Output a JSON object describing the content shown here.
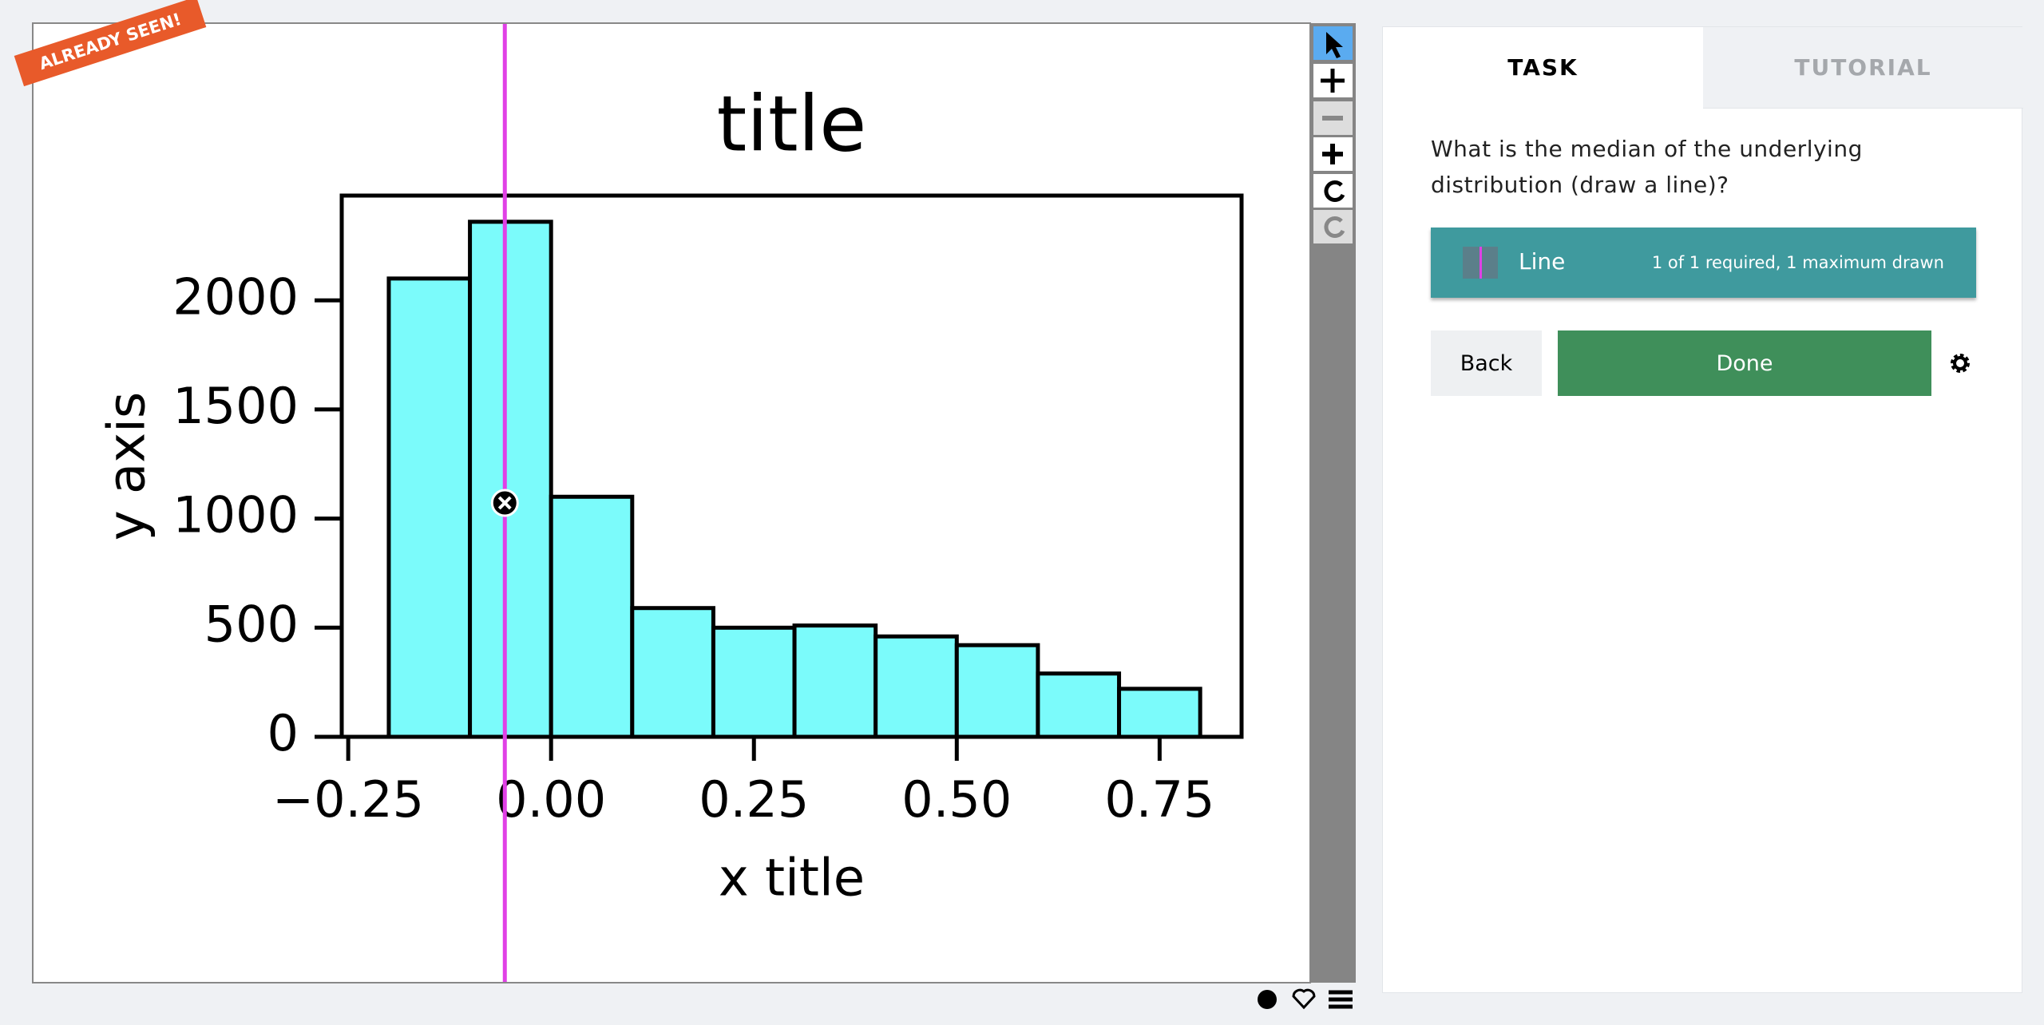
{
  "badge": "ALREADY SEEN!",
  "chart_data": {
    "type": "histogram",
    "title": "title",
    "x_label": "x title",
    "y_label": "y axis",
    "bins": [
      -0.2,
      -0.1,
      0.0,
      0.1,
      0.2,
      0.3,
      0.4,
      0.5,
      0.6,
      0.7,
      0.8
    ],
    "values": [
      2100,
      2360,
      1100,
      590,
      500,
      510,
      460,
      420,
      290,
      220
    ],
    "color": "#7bfbfb",
    "xlim": [
      -0.258,
      0.851
    ],
    "ylim": [
      0,
      2480
    ],
    "xticks": [
      {
        "value": -0.25,
        "label": "−0.25"
      },
      {
        "value": 0,
        "label": "0.00"
      },
      0.25,
      {
        "value": 0.5,
        "label": "0.50"
      },
      0.75
    ],
    "yticks": [
      0,
      500,
      1000,
      1500,
      2000
    ],
    "drawn_line_x": -0.057,
    "drawn_line_color": "#e040e6"
  },
  "tabs": [
    "TASK",
    "TUTORIAL"
  ],
  "task": {
    "question": "What is the median of the underlying distribution (draw a line)?",
    "tool": {
      "label": "Line",
      "status": "1 of 1 required, 1 maximum drawn"
    }
  },
  "buttons": {
    "back": "Back",
    "done": "Done"
  }
}
